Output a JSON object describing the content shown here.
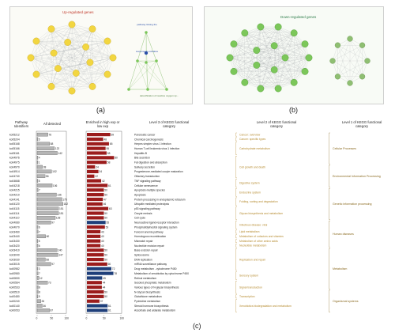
{
  "panels": {
    "a_label": "(a)",
    "b_label": "(b)",
    "c_label": "(c)",
    "up_title": "Up-regulated genes",
    "down_title": "Down-regulated genes",
    "triangle_top": "pathway linking the",
    "triangle_mid": "response to oxidative",
    "triangle_bottom": "detoxification of reactive oxygen sp..."
  },
  "headers": {
    "pathway_ids": "Pathway Identifiers",
    "all_detected": "All detected",
    "enriched": "Enriched in high exp or low exp",
    "level3": "Level 3 of KEGG functional category",
    "level2": "Level 2 of KEGG functional category",
    "level1": "Level 1 of KEGG functional category"
  },
  "axis": {
    "all_ticks": [
      "0",
      "50",
      "100"
    ],
    "enriched_ticks": [
      "0",
      "50",
      "100"
    ]
  },
  "colors": {
    "up_node": "#f2d640",
    "down_node": "#7cc75a",
    "red_bar": "#9b1c1c",
    "blue_bar": "#1f3f7a",
    "grey_bar": "#b5b5b5"
  },
  "rows": [
    {
      "id": "ko05212",
      "all": 76,
      "enr": 69,
      "dir": "up",
      "l3": "Pancreatic cancer"
    },
    {
      "id": "ko05204",
      "all": 5,
      "enr": 48,
      "dir": "up",
      "l3": "Chemical carcinogenesis"
    },
    {
      "id": "ko05168",
      "all": 88,
      "enr": 65,
      "dir": "up",
      "l3": "Herpes simplex virus 1 infection"
    },
    {
      "id": "ko05166",
      "all": 122,
      "enr": 55,
      "dir": "up",
      "l3": "Human T-cell leukemia virus 1 infection"
    },
    {
      "id": "ko05161",
      "all": 142,
      "enr": 58,
      "dir": "up",
      "l3": "Hepatitis B"
    },
    {
      "id": "ko04976",
      "all": 4,
      "enr": 80,
      "dir": "up",
      "l3": "Bile secretion"
    },
    {
      "id": "ko04975",
      "all": 1,
      "enr": 58,
      "dir": "up",
      "l3": "Fat digestion and absorption"
    },
    {
      "id": "ko04970",
      "all": 38,
      "enr": 24,
      "dir": "up",
      "l3": "Salivary secretion"
    },
    {
      "id": "ko04914",
      "all": 102,
      "enr": 34,
      "dir": "up",
      "l3": "Progesterone-mediated oocyte maturation"
    },
    {
      "id": "ko04740",
      "all": 56,
      "enr": 22,
      "dir": "up",
      "l3": "Olfactory transduction"
    },
    {
      "id": "ko04668",
      "all": 5,
      "enr": 42,
      "dir": "up",
      "l3": "TNF signaling pathway"
    },
    {
      "id": "ko04218",
      "all": 106,
      "enr": 61,
      "dir": "up",
      "l3": "Cellular senescence"
    },
    {
      "id": "ko04215",
      "all": 7,
      "enr": 50,
      "dir": "up",
      "l3": "Apoptosis-multiple species"
    },
    {
      "id": "ko04210",
      "all": 136,
      "enr": 50,
      "dir": "up",
      "l3": "Apoptosis"
    },
    {
      "id": "ko04141",
      "all": 175,
      "enr": 47,
      "dir": "up",
      "l3": "Protein processing in endoplasmic reticulum"
    },
    {
      "id": "ko04120",
      "all": 182,
      "enr": 46,
      "dir": "up",
      "l3": "Ubiquitin mediated proteolysis"
    },
    {
      "id": "ko04115",
      "all": 151,
      "enr": 63,
      "dir": "up",
      "l3": "p53 signaling pathway"
    },
    {
      "id": "ko04114",
      "all": 151,
      "enr": 50,
      "dir": "up",
      "l3": "Oocyte meiosis"
    },
    {
      "id": "ko04110",
      "all": 128,
      "enr": 50,
      "dir": "up",
      "l3": "Cell cycle"
    },
    {
      "id": "ko04080",
      "all": 97,
      "enr": 55,
      "dir": "down",
      "l3": "Neuroactive ligand-receptor interaction"
    },
    {
      "id": "ko04070",
      "all": 6,
      "enr": 53,
      "dir": "up",
      "l3": "Phosphatidylinositol signaling system"
    },
    {
      "id": "ko03460",
      "all": 7,
      "enr": 40,
      "dir": "up",
      "l3": "Fanconi anemia pathway"
    },
    {
      "id": "ko03440",
      "all": 60,
      "enr": 40,
      "dir": "up",
      "l3": "Homologous recombination"
    },
    {
      "id": "ko03430",
      "all": 5,
      "enr": 40,
      "dir": "up",
      "l3": "Mismatch repair"
    },
    {
      "id": "ko03420",
      "all": 6,
      "enr": 40,
      "dir": "up",
      "l3": "Nucleotide excision repair"
    },
    {
      "id": "ko03410",
      "all": 140,
      "enr": 50,
      "dir": "up",
      "l3": "Base excision repair"
    },
    {
      "id": "ko03040",
      "all": 147,
      "enr": 50,
      "dir": "up",
      "l3": "Spliceosome"
    },
    {
      "id": "ko03030",
      "all": 58,
      "enr": 50,
      "dir": "up",
      "l3": "DNA replication"
    },
    {
      "id": "ko03015",
      "all": 97,
      "enr": 60,
      "dir": "up",
      "l3": "mRNA surveillance pathway"
    },
    {
      "id": "ko00982",
      "all": 3,
      "enr": 72,
      "dir": "down",
      "l3": "Drug metabolism - cytochrome P450"
    },
    {
      "id": "ko00980",
      "all": 7,
      "enr": 78,
      "dir": "down",
      "l3": "Metabolism of xenobiotics by cytochrome P450"
    },
    {
      "id": "ko00830",
      "all": 12,
      "enr": 45,
      "dir": "down",
      "l3": "Retinol metabolism"
    },
    {
      "id": "ko00564",
      "all": 73,
      "enr": 44,
      "dir": "up",
      "l3": "Sesoled phosphatic metabolism"
    },
    {
      "id": "ko00533",
      "all": 8,
      "enr": 44,
      "dir": "up",
      "l3": "Various types of N-glycan biosynthesis"
    },
    {
      "id": "ko00510",
      "all": 8,
      "enr": 50,
      "dir": "up",
      "l3": "N-Glycan biosynthesis"
    },
    {
      "id": "ko00480",
      "all": 5,
      "enr": 50,
      "dir": "up",
      "l3": "Glutathione metabolism"
    },
    {
      "id": "ko00240",
      "all": 26,
      "enr": 37,
      "dir": "up",
      "l3": "Pyrimidine metabolism"
    },
    {
      "id": "ko00140",
      "all": 36,
      "enr": 61,
      "dir": "down",
      "l3": "Steroid hormone biosynthesis"
    },
    {
      "id": "ko00053",
      "all": 87,
      "enr": 61,
      "dir": "down",
      "l3": "Ascorbate and aldarate metabolism"
    }
  ],
  "level2_groups": [
    {
      "label": "Cancer: overview",
      "from": 0,
      "to": 0
    },
    {
      "label": "Cancer: specific types",
      "from": 1,
      "to": 1
    },
    {
      "label": "Carbohydrate metabolism",
      "from": 2,
      "to": 4
    },
    {
      "label": "Cell growth and death",
      "from": 5,
      "to": 9
    },
    {
      "label": "Digestive system",
      "from": 10,
      "to": 11
    },
    {
      "label": "Endocrine system",
      "from": 12,
      "to": 13
    },
    {
      "label": "Folding, sorting and degradation",
      "from": 14,
      "to": 15
    },
    {
      "label": "Glycan biosynthesis and metabolism",
      "from": 16,
      "to": 18
    },
    {
      "label": "Infectious disease: viral",
      "from": 19,
      "to": 20
    },
    {
      "label": "Lipid metabolism",
      "from": 21,
      "to": 21
    },
    {
      "label": "Metabolism of cofactors and vitamins",
      "from": 22,
      "to": 22
    },
    {
      "label": "Metabolism of other amino acids",
      "from": 23,
      "to": 23
    },
    {
      "label": "Nucleotide metabolism",
      "from": 24,
      "to": 24
    },
    {
      "label": "Replication and repair",
      "from": 25,
      "to": 29
    },
    {
      "label": "Sensory system",
      "from": 30,
      "to": 31
    },
    {
      "label": "Signal transduction",
      "from": 32,
      "to": 34
    },
    {
      "label": "Transcription",
      "from": 35,
      "to": 35
    },
    {
      "label": "Xenobiotics biodegradation and metabolism",
      "from": 36,
      "to": 38
    }
  ],
  "level1_groups": [
    {
      "label": "Cellular Processes",
      "from": 0,
      "to": 6
    },
    {
      "label": "Environmental Information Processing",
      "from": 7,
      "to": 11
    },
    {
      "label": "Genetic information processing",
      "from": 12,
      "to": 18
    },
    {
      "label": "Human diseases",
      "from": 19,
      "to": 24
    },
    {
      "label": "Metabolism",
      "from": 25,
      "to": 33
    },
    {
      "label": "Organismal systems",
      "from": 34,
      "to": 38
    }
  ]
}
